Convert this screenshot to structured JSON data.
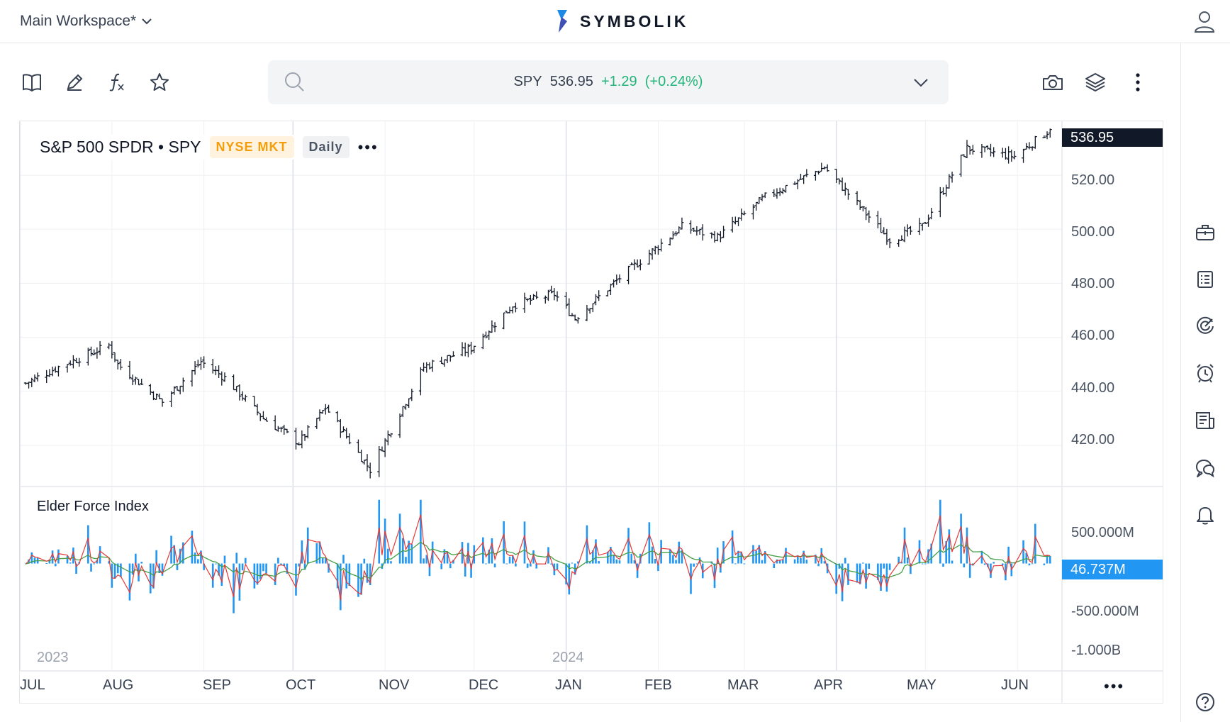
{
  "header": {
    "workspace_label": "Main Workspace*",
    "logo_text": "SYMBOLIK"
  },
  "toolbar": {
    "left_icons": [
      "book-icon",
      "pencil-icon",
      "function-icon",
      "star-icon"
    ],
    "right_icons": [
      "camera-icon",
      "layers-icon",
      "more-vertical-icon"
    ]
  },
  "search": {
    "symbol": "SPY",
    "price": "536.95",
    "change": "+1.29",
    "change_pct": "(+0.24%)"
  },
  "chart": {
    "title": "S&P 500 SPDR • SPY",
    "exchange": "NYSE MKT",
    "interval": "Daily",
    "more": "•••",
    "price_tag": "536.95",
    "y_labels": [
      "520.00",
      "500.00",
      "480.00",
      "460.00",
      "440.00",
      "420.00"
    ],
    "indicator": {
      "title": "Elder Force Index",
      "value_tag": "46.737M",
      "y_labels": [
        "500.000M",
        "-500.000M",
        "-1.000B"
      ]
    },
    "x_labels": [
      "JUL",
      "AUG",
      "SEP",
      "OCT",
      "NOV",
      "DEC",
      "JAN",
      "FEB",
      "MAR",
      "APR",
      "MAY",
      "JUN"
    ],
    "year_labels": [
      "2023",
      "2024"
    ],
    "x_more": "•••"
  },
  "sidebar": {
    "icons": [
      "briefcase-icon",
      "watchlist-icon",
      "radar-icon",
      "alarm-icon",
      "news-icon",
      "chat-icon",
      "bell-icon",
      "help-icon"
    ]
  },
  "colors": {
    "accent": "#2196f3",
    "up": "#22b57a",
    "exchange_badge": "#f59e0b",
    "price_tag_bg": "#111827",
    "efi_ema_fast": "#e53935",
    "efi_ema_slow": "#43a047"
  },
  "chart_data": {
    "type": "ohlc",
    "interval": "Daily",
    "price_series": [
      {
        "date": "2023-07-03",
        "close": 443
      },
      {
        "date": "2023-07-14",
        "close": 449
      },
      {
        "date": "2023-07-31",
        "close": 457
      },
      {
        "date": "2023-08-03",
        "close": 450
      },
      {
        "date": "2023-08-18",
        "close": 436
      },
      {
        "date": "2023-08-31",
        "close": 451
      },
      {
        "date": "2023-09-08",
        "close": 445
      },
      {
        "date": "2023-09-21",
        "close": 430
      },
      {
        "date": "2023-10-03",
        "close": 421
      },
      {
        "date": "2023-10-12",
        "close": 434
      },
      {
        "date": "2023-10-27",
        "close": 411
      },
      {
        "date": "2023-11-14",
        "close": 449
      },
      {
        "date": "2023-11-30",
        "close": 456
      },
      {
        "date": "2023-12-14",
        "close": 472
      },
      {
        "date": "2023-12-28",
        "close": 476
      },
      {
        "date": "2024-01-04",
        "close": 467
      },
      {
        "date": "2024-01-19",
        "close": 482
      },
      {
        "date": "2024-02-09",
        "close": 501
      },
      {
        "date": "2024-02-21",
        "close": 497
      },
      {
        "date": "2024-03-08",
        "close": 512
      },
      {
        "date": "2024-03-28",
        "close": 523
      },
      {
        "date": "2024-04-19",
        "close": 496
      },
      {
        "date": "2024-04-30",
        "close": 501
      },
      {
        "date": "2024-05-15",
        "close": 530
      },
      {
        "date": "2024-05-31",
        "close": 527
      },
      {
        "date": "2024-06-12",
        "close": 536.95
      }
    ],
    "force_index_last": "46.737M",
    "y_range": [
      405,
      540
    ],
    "force_index_range": [
      -1000000000,
      650000000
    ]
  }
}
